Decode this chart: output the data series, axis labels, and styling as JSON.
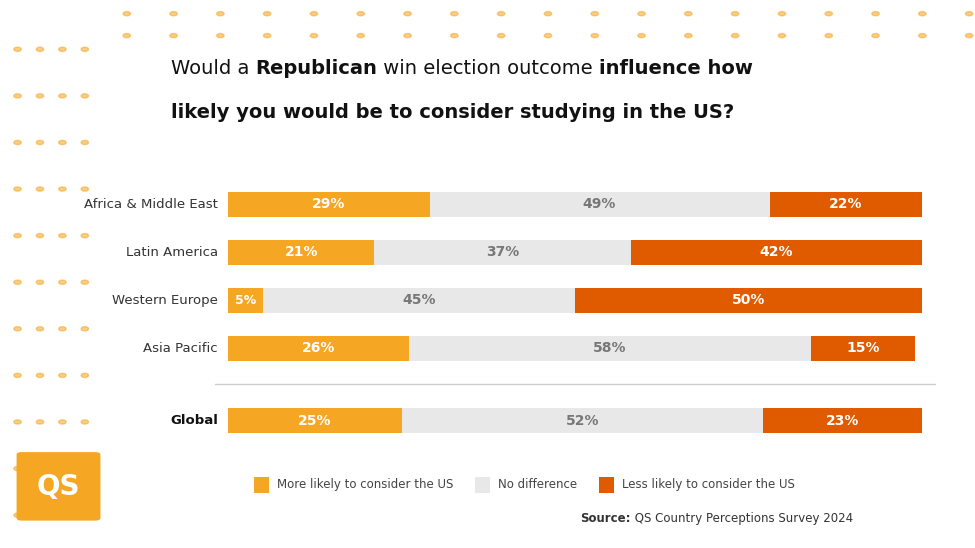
{
  "categories": [
    "Africa & Middle East",
    "Latin America",
    "Western Europe",
    "Asia Pacific"
  ],
  "global_label": "Global",
  "more_likely": [
    29,
    21,
    5,
    26
  ],
  "no_difference": [
    49,
    37,
    45,
    58
  ],
  "less_likely": [
    22,
    42,
    50,
    15
  ],
  "global_more": 25,
  "global_no": 52,
  "global_less": 23,
  "color_more": "#F5A623",
  "color_no": "#E8E8E8",
  "color_less": "#E05A00",
  "background": "#FFFFFF",
  "dot_color": "#F5A623",
  "legend_more": "More likely to consider the US",
  "legend_no": "No difference",
  "legend_less": "Less likely to consider the US",
  "source_bold": "Source:",
  "source_normal": " QS Country Perceptions Survey 2024",
  "bar_height": 0.52,
  "title_fontsize": 14,
  "label_fontsize": 9.5,
  "bar_label_fontsize": 10
}
